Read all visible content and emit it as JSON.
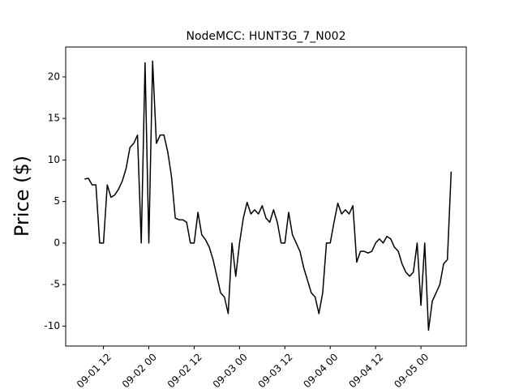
{
  "chart_data": {
    "type": "line",
    "title": "NodeMCC: HUNT3G_7_N002",
    "y_label": "Price ($)",
    "color": "#000000",
    "x": [
      "09-01 07",
      "09-01 08",
      "09-01 09",
      "09-01 10",
      "09-01 11",
      "09-01 12",
      "09-01 13",
      "09-01 14",
      "09-01 15",
      "09-01 16",
      "09-01 17",
      "09-01 18",
      "09-01 19",
      "09-01 20",
      "09-01 21",
      "09-01 22",
      "09-01 23",
      "09-02 00",
      "09-02 01",
      "09-02 02",
      "09-02 03",
      "09-02 04",
      "09-02 05",
      "09-02 06",
      "09-02 07",
      "09-02 08",
      "09-02 09",
      "09-02 10",
      "09-02 11",
      "09-02 12",
      "09-02 13",
      "09-02 14",
      "09-02 15",
      "09-02 16",
      "09-02 17",
      "09-02 18",
      "09-02 19",
      "09-02 20",
      "09-02 21",
      "09-02 22",
      "09-02 23",
      "09-03 00",
      "09-03 01",
      "09-03 02",
      "09-03 03",
      "09-03 04",
      "09-03 05",
      "09-03 06",
      "09-03 07",
      "09-03 08",
      "09-03 09",
      "09-03 10",
      "09-03 11",
      "09-03 12",
      "09-03 13",
      "09-03 14",
      "09-03 15",
      "09-03 16",
      "09-03 17",
      "09-03 18",
      "09-03 19",
      "09-03 20",
      "09-03 21",
      "09-03 22",
      "09-03 23",
      "09-04 00",
      "09-04 01",
      "09-04 02",
      "09-04 03",
      "09-04 04",
      "09-04 05",
      "09-04 06",
      "09-04 07",
      "09-04 08",
      "09-04 09",
      "09-04 10",
      "09-04 11",
      "09-04 12",
      "09-04 13",
      "09-04 14",
      "09-04 15",
      "09-04 16",
      "09-04 17",
      "09-04 18",
      "09-04 19",
      "09-04 20",
      "09-04 21",
      "09-04 22",
      "09-04 23",
      "09-05 00",
      "09-05 01",
      "09-05 02",
      "09-05 03",
      "09-05 04",
      "09-05 05",
      "09-05 06",
      "09-05 07",
      "09-05 08"
    ],
    "values": [
      7.7,
      7.8,
      7,
      7,
      0,
      0,
      7,
      5.5,
      5.8,
      6.5,
      7.5,
      9,
      11.5,
      12,
      13,
      0,
      21.7,
      0,
      21.9,
      12,
      13,
      13,
      11,
      8,
      3,
      2.8,
      2.8,
      2.5,
      0,
      0,
      3.7,
      1,
      0.4,
      -0.5,
      -2,
      -4,
      -6,
      -6.5,
      -8.5,
      0,
      -4,
      0,
      3,
      4.9,
      3.5,
      4,
      3.5,
      4.5,
      3,
      2.5,
      4,
      2.5,
      0,
      0,
      3.7,
      1,
      0,
      -1,
      -3,
      -4.5,
      -6,
      -6.5,
      -8.5,
      -6,
      0,
      0,
      2.5,
      4.8,
      3.5,
      4,
      3.5,
      4.5,
      -2.3,
      -1,
      -1,
      -1.2,
      -1,
      0,
      0.5,
      0,
      0.8,
      0.5,
      -0.5,
      -1,
      -2.5,
      -3.5,
      -4,
      -3.5,
      0,
      -7.5,
      0,
      -10.5,
      -7,
      -6,
      -5,
      -2.5,
      -2,
      8.6
    ],
    "xlim": [
      "09-01 02",
      "09-05 12"
    ],
    "xticks": [
      "09-01 12",
      "09-02 00",
      "09-02 12",
      "09-03 00",
      "09-03 12",
      "09-04 00",
      "09-04 12",
      "09-05 00"
    ],
    "ylim": [
      -12.4,
      23.6
    ],
    "yticks": [
      -10,
      -5,
      0,
      5,
      10,
      15,
      20
    ]
  }
}
